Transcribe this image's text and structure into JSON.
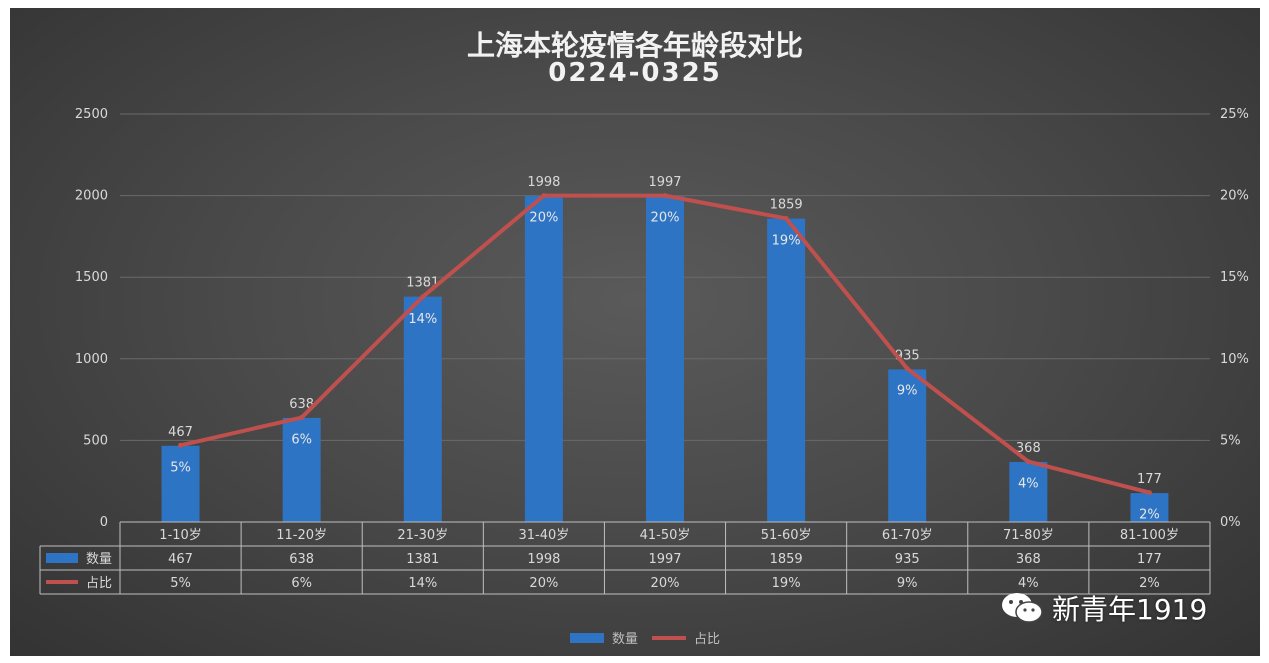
{
  "title_line1": "上海本轮疫情各年龄段对比",
  "title_line2": "0224-0325",
  "watermark": "新青年1919",
  "colors": {
    "bar": "#2e74c4",
    "line": "#c0504d",
    "grid": "#6a6a6a",
    "text": "#d9d9d9"
  },
  "chart_data": {
    "type": "bar",
    "categories": [
      "1-10岁",
      "11-20岁",
      "21-30岁",
      "31-40岁",
      "41-50岁",
      "51-60岁",
      "61-70岁",
      "71-80岁",
      "81-100岁"
    ],
    "series": [
      {
        "name": "数量",
        "type": "bar",
        "axis": "left",
        "values": [
          467,
          638,
          1381,
          1998,
          1997,
          1859,
          935,
          368,
          177
        ],
        "labels": [
          "467",
          "638",
          "1381",
          "1998",
          "1997",
          "1859",
          "935",
          "368",
          "177"
        ]
      },
      {
        "name": "占比",
        "type": "line",
        "axis": "right",
        "values": [
          4.7,
          6.4,
          13.8,
          20.0,
          20.0,
          18.6,
          9.4,
          3.7,
          1.8
        ],
        "labels": [
          "5%",
          "6%",
          "14%",
          "20%",
          "20%",
          "19%",
          "9%",
          "4%",
          "2%"
        ]
      }
    ],
    "y_left": {
      "min": 0,
      "max": 2500,
      "ticks": [
        "0",
        "500",
        "1000",
        "1500",
        "2000",
        "2500"
      ]
    },
    "y_right": {
      "min": 0,
      "max": 25,
      "ticks": [
        "0%",
        "5%",
        "10%",
        "15%",
        "20%",
        "25%"
      ]
    },
    "grid": true,
    "data_table": true,
    "legend_position": "bottom"
  }
}
